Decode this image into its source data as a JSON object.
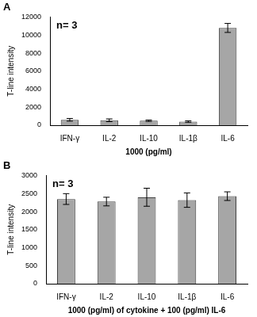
{
  "chart_data": [
    {
      "type": "bar",
      "title": "A",
      "annotations": [
        "n= 3"
      ],
      "categories": [
        "IFN-γ",
        "IL-2",
        "IL-10",
        "IL-1β",
        "IL-6"
      ],
      "values": [
        600,
        550,
        500,
        400,
        10800
      ],
      "errors": [
        150,
        150,
        80,
        80,
        500
      ],
      "color": "#a6a6a6",
      "xlabel": "1000 (pg/ml)",
      "ylabel": "T-line intensity",
      "ylim": [
        0,
        12000
      ],
      "yticks": [
        0,
        2000,
        4000,
        6000,
        8000,
        10000,
        12000
      ],
      "grid": false
    },
    {
      "type": "bar",
      "title": "B",
      "annotations": [
        "n= 3"
      ],
      "categories": [
        "IFN-γ",
        "IL-2",
        "IL-10",
        "IL-1β",
        "IL-6"
      ],
      "values": [
        2350,
        2280,
        2400,
        2320,
        2430
      ],
      "errors": [
        150,
        120,
        250,
        200,
        120
      ],
      "color": "#a6a6a6",
      "xlabel": "1000 (pg/ml) of cytokine + 100 (pg/ml) IL-6",
      "ylabel": "T-line intensity",
      "ylim": [
        0,
        3000
      ],
      "yticks": [
        0,
        500,
        1000,
        1500,
        2000,
        2500,
        3000
      ],
      "grid": false
    }
  ]
}
